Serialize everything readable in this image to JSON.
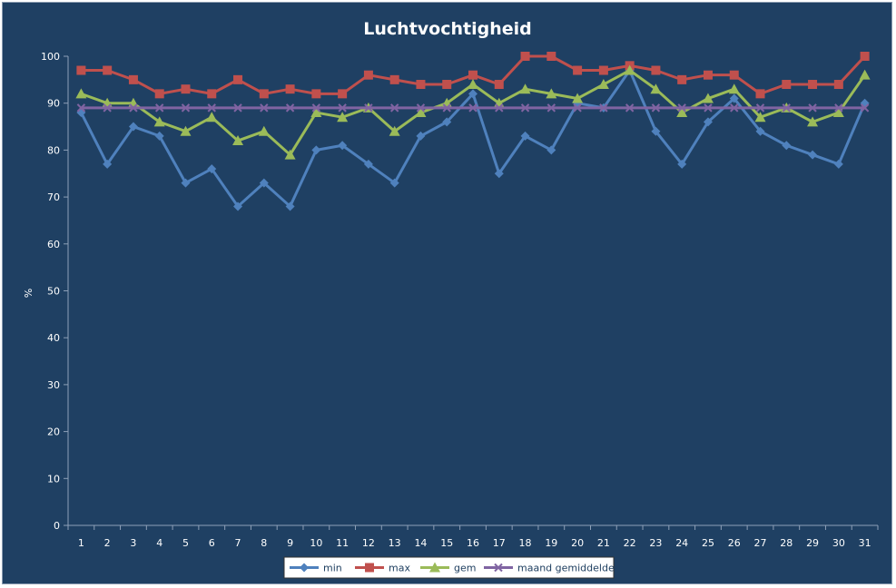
{
  "chart_data": {
    "type": "line",
    "title": "Luchtvochtigheid",
    "xlabel": "",
    "ylabel": "%",
    "ylim": [
      0,
      100
    ],
    "yticks": [
      "0",
      "10",
      "20",
      "30",
      "40",
      "50",
      "60",
      "70",
      "80",
      "90",
      "100"
    ],
    "categories": [
      "1",
      "2",
      "3",
      "4",
      "5",
      "6",
      "7",
      "8",
      "9",
      "10",
      "11",
      "12",
      "13",
      "14",
      "15",
      "16",
      "17",
      "18",
      "19",
      "20",
      "21",
      "22",
      "23",
      "24",
      "25",
      "26",
      "27",
      "28",
      "29",
      "30",
      "31"
    ],
    "grid": false,
    "legend_position": "bottom",
    "series": [
      {
        "name": "min",
        "color": "#4f81bd",
        "marker": "diamond",
        "values": [
          88,
          77,
          85,
          83,
          73,
          76,
          68,
          73,
          68,
          80,
          81,
          77,
          73,
          83,
          86,
          92,
          75,
          83,
          80,
          90,
          89,
          97,
          84,
          77,
          86,
          91,
          84,
          81,
          79,
          77,
          90
        ]
      },
      {
        "name": "max",
        "color": "#c0504d",
        "marker": "square",
        "values": [
          97,
          97,
          95,
          92,
          93,
          92,
          95,
          92,
          93,
          92,
          92,
          96,
          95,
          94,
          94,
          96,
          94,
          100,
          100,
          97,
          97,
          98,
          97,
          95,
          96,
          96,
          92,
          94,
          94,
          94,
          100
        ]
      },
      {
        "name": "gem",
        "color": "#9bbb59",
        "marker": "triangle",
        "values": [
          92,
          90,
          90,
          86,
          84,
          87,
          82,
          84,
          79,
          88,
          87,
          89,
          84,
          88,
          90,
          94,
          90,
          93,
          92,
          91,
          94,
          97,
          93,
          88,
          91,
          93,
          87,
          89,
          86,
          88,
          96
        ]
      },
      {
        "name": "maand gemiddelde",
        "color": "#8064a2",
        "marker": "x",
        "values": [
          89,
          89,
          89,
          89,
          89,
          89,
          89,
          89,
          89,
          89,
          89,
          89,
          89,
          89,
          89,
          89,
          89,
          89,
          89,
          89,
          89,
          89,
          89,
          89,
          89,
          89,
          89,
          89,
          89,
          89,
          89
        ]
      }
    ]
  }
}
